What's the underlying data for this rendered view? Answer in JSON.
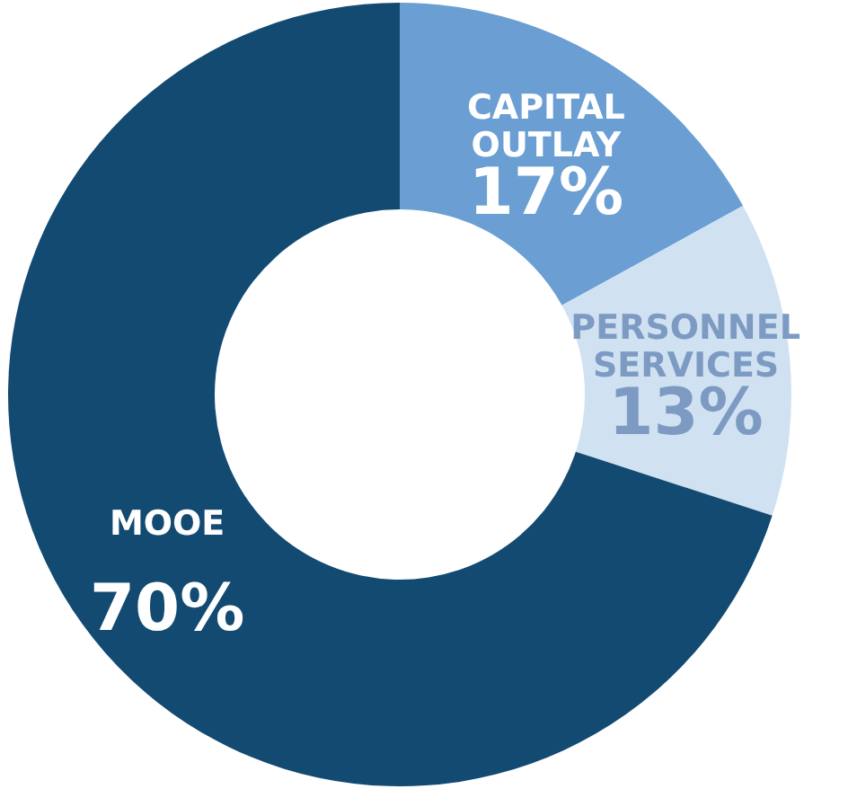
{
  "chart_data": {
    "type": "donut",
    "categories": [
      "CAPITAL OUTLAY",
      "PERSONNEL SERVICES",
      "MOOE"
    ],
    "values": [
      17,
      13,
      70
    ],
    "colors": [
      "#6b9fd3",
      "#d0e1f2",
      "#134a72"
    ],
    "value_labels": [
      "17%",
      "13%",
      "70%"
    ]
  }
}
